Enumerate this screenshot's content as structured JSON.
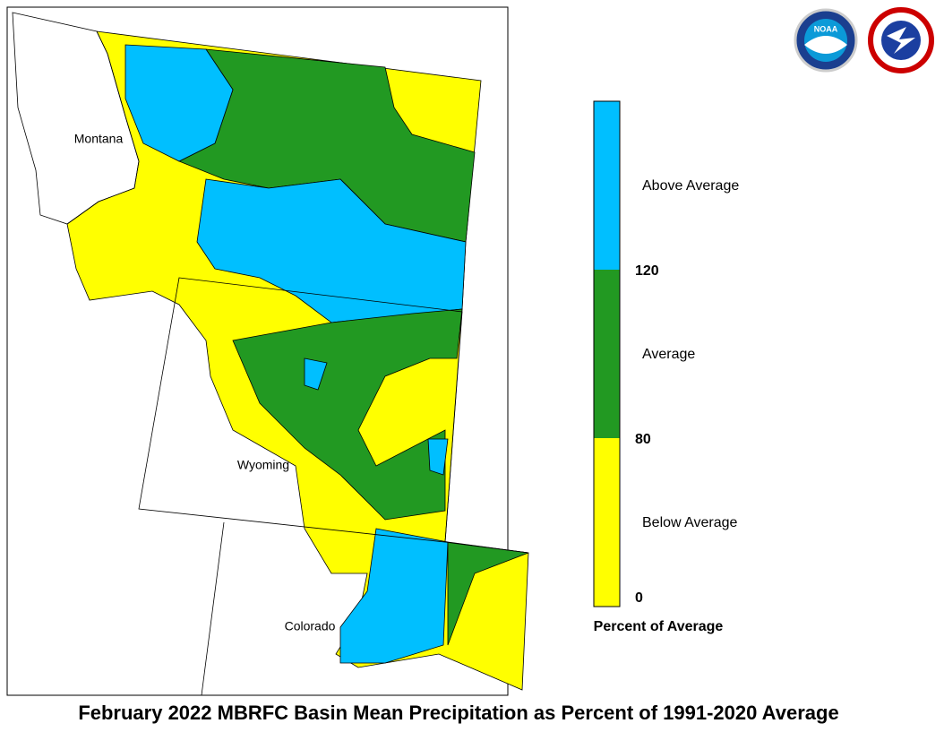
{
  "map": {
    "title": "February 2022 MBRFC Basin Mean Precipitation as Percent of 1991-2020 Average",
    "states": [
      "Montana",
      "Wyoming",
      "Colorado"
    ],
    "logo_text": "NOAA",
    "legend": {
      "title": "Percent of Average",
      "bins": [
        {
          "label": "Below Average",
          "color": "#ffff00"
        },
        {
          "label": "Average",
          "color": "#229922"
        },
        {
          "label": "Above Average",
          "color": "#00bfff"
        }
      ],
      "ticks": [
        0,
        80,
        120
      ]
    }
  }
}
